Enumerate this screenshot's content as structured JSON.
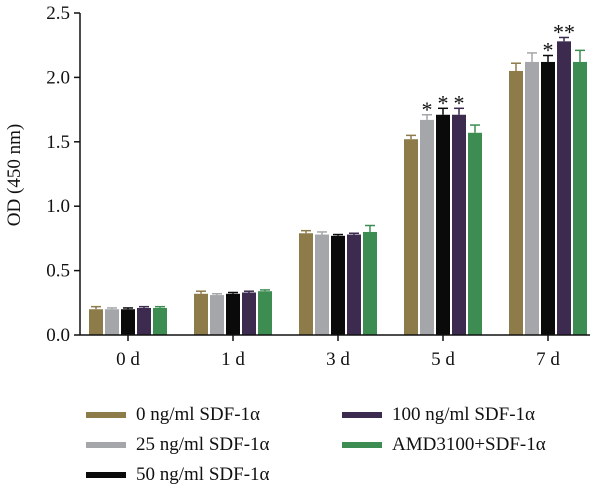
{
  "chart_data": {
    "type": "bar",
    "ylabel": "OD (450 nm)",
    "xlabel": "",
    "ylim": [
      0,
      2.5
    ],
    "yticks": [
      "0.0",
      "0.5",
      "1.0",
      "1.5",
      "2.0",
      "2.5"
    ],
    "categories": [
      "0 d",
      "1 d",
      "3 d",
      "5 d",
      "7 d"
    ],
    "grid": false,
    "legend_position": "bottom",
    "series": [
      {
        "name": "0 ng/ml SDF-1α",
        "color": "#8d7b4a",
        "values": [
          0.2,
          0.32,
          0.79,
          1.52,
          2.05
        ],
        "errors": [
          0.02,
          0.02,
          0.02,
          0.03,
          0.06
        ],
        "significance": [
          "",
          "",
          "",
          "",
          ""
        ]
      },
      {
        "name": "25 ng/ml SDF-1α",
        "color": "#a4a6a9",
        "values": [
          0.2,
          0.31,
          0.78,
          1.67,
          2.12
        ],
        "errors": [
          0.01,
          0.01,
          0.02,
          0.04,
          0.07
        ],
        "significance": [
          "",
          "",
          "",
          "*",
          ""
        ]
      },
      {
        "name": "50 ng/ml SDF-1α",
        "color": "#0a0a0a",
        "values": [
          0.2,
          0.32,
          0.77,
          1.71,
          2.12
        ],
        "errors": [
          0.01,
          0.01,
          0.01,
          0.05,
          0.05
        ],
        "significance": [
          "",
          "",
          "",
          "*",
          "*"
        ]
      },
      {
        "name": "100 ng/ml SDF-1α",
        "color": "#3c2a4f",
        "values": [
          0.21,
          0.33,
          0.78,
          1.71,
          2.28
        ],
        "errors": [
          0.01,
          0.01,
          0.01,
          0.05,
          0.03
        ],
        "significance": [
          "",
          "",
          "",
          "*",
          "**"
        ]
      },
      {
        "name": "AMD3100+SDF-1α",
        "color": "#3d8d52",
        "values": [
          0.21,
          0.34,
          0.8,
          1.57,
          2.12
        ],
        "errors": [
          0.01,
          0.01,
          0.05,
          0.06,
          0.09
        ],
        "significance": [
          "",
          "",
          "",
          "",
          ""
        ]
      }
    ]
  }
}
